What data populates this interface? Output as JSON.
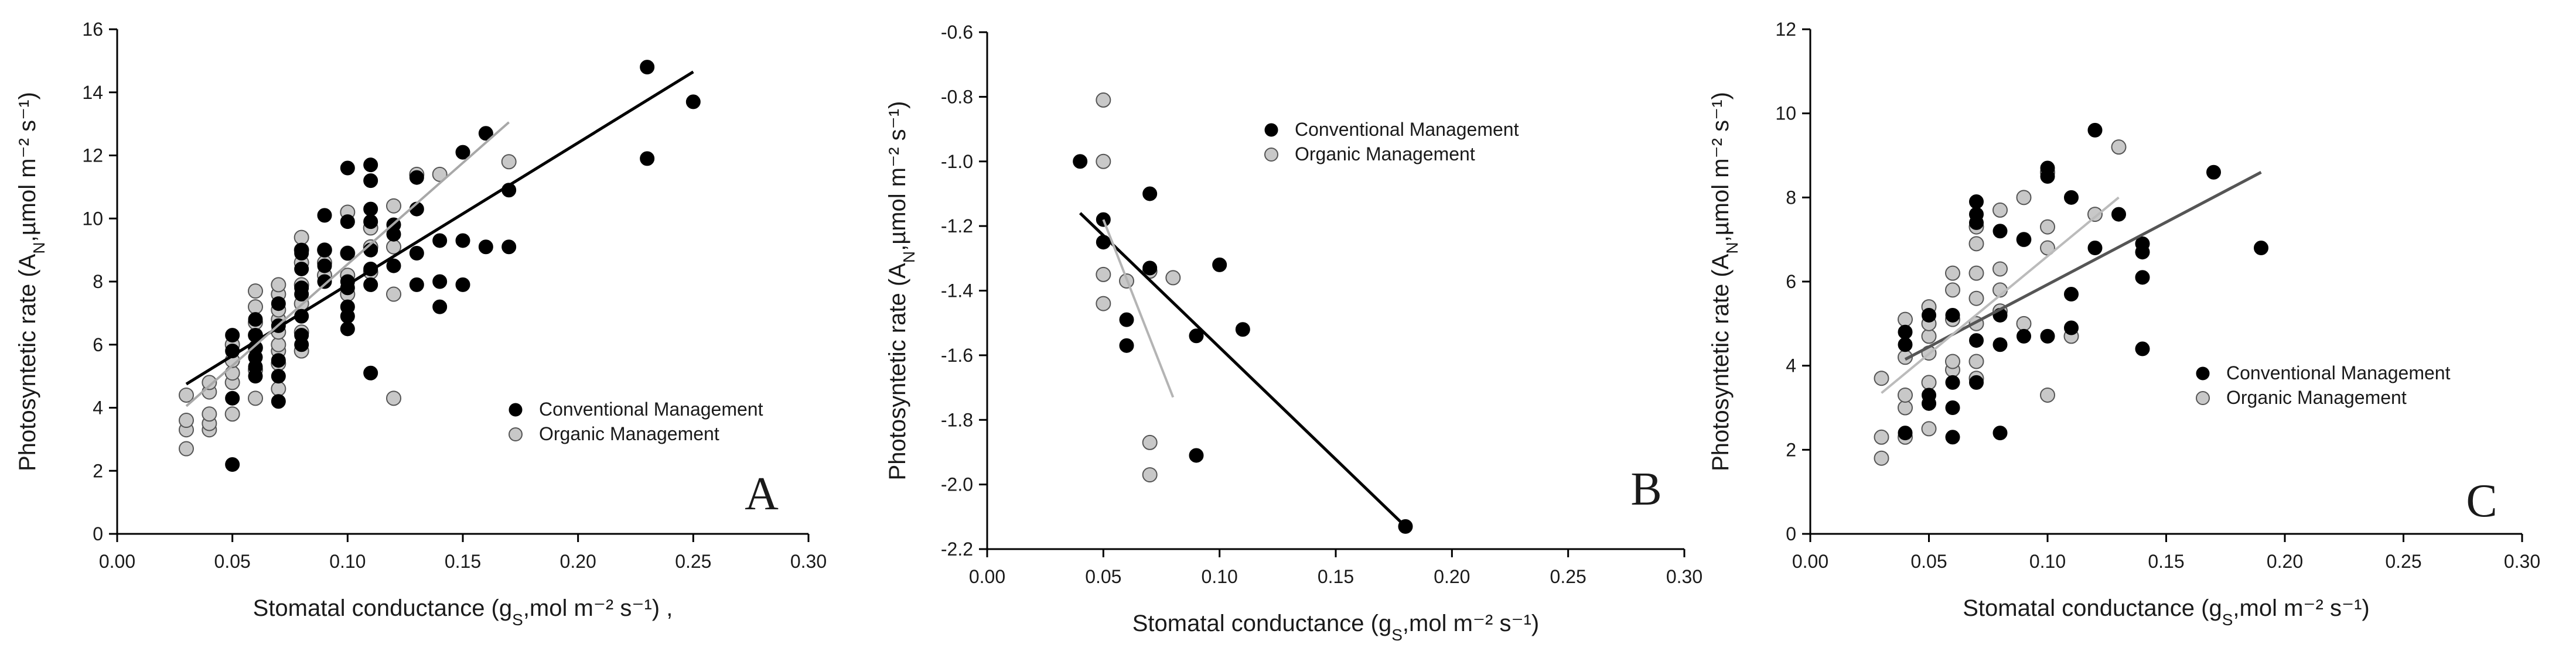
{
  "chart_data": [
    {
      "type": "scatter",
      "panel_label": "A",
      "xlabel": {
        "pre": "Stomatal conductance (g",
        "sub": "S",
        "post": ",mol m⁻² s⁻¹) ,"
      },
      "ylabel": {
        "pre": "Photosyntetic rate (A",
        "sub": "N",
        "post": ",µmol m⁻² s⁻¹)"
      },
      "xlim": [
        0,
        0.3
      ],
      "ylim": [
        0,
        16
      ],
      "xticks": [
        "0.00",
        "0.05",
        "0.10",
        "0.15",
        "0.20",
        "0.25",
        "0.30"
      ],
      "yticks": [
        "0",
        "2",
        "4",
        "6",
        "8",
        "10",
        "12",
        "14",
        "16"
      ],
      "legend_position": "lower-right",
      "series": [
        {
          "name": "Conventional Management",
          "color": "#000000",
          "points": [
            [
              0.05,
              2.2
            ],
            [
              0.05,
              4.3
            ],
            [
              0.05,
              5.8
            ],
            [
              0.05,
              6.3
            ],
            [
              0.06,
              5.0
            ],
            [
              0.06,
              5.3
            ],
            [
              0.06,
              5.6
            ],
            [
              0.06,
              5.9
            ],
            [
              0.06,
              6.3
            ],
            [
              0.06,
              6.8
            ],
            [
              0.07,
              4.2
            ],
            [
              0.07,
              5.0
            ],
            [
              0.07,
              5.5
            ],
            [
              0.07,
              6.6
            ],
            [
              0.07,
              7.3
            ],
            [
              0.08,
              6.0
            ],
            [
              0.08,
              6.3
            ],
            [
              0.08,
              6.9
            ],
            [
              0.08,
              7.6
            ],
            [
              0.08,
              7.8
            ],
            [
              0.08,
              8.4
            ],
            [
              0.08,
              8.9
            ],
            [
              0.08,
              9.0
            ],
            [
              0.09,
              8.0
            ],
            [
              0.09,
              8.5
            ],
            [
              0.09,
              9.0
            ],
            [
              0.09,
              10.1
            ],
            [
              0.1,
              6.5
            ],
            [
              0.1,
              6.9
            ],
            [
              0.1,
              7.2
            ],
            [
              0.1,
              7.8
            ],
            [
              0.1,
              8.0
            ],
            [
              0.1,
              8.9
            ],
            [
              0.1,
              9.9
            ],
            [
              0.1,
              11.6
            ],
            [
              0.11,
              5.1
            ],
            [
              0.11,
              7.9
            ],
            [
              0.11,
              8.4
            ],
            [
              0.11,
              9.0
            ],
            [
              0.11,
              9.9
            ],
            [
              0.11,
              10.3
            ],
            [
              0.11,
              11.2
            ],
            [
              0.11,
              11.7
            ],
            [
              0.12,
              8.5
            ],
            [
              0.12,
              9.5
            ],
            [
              0.12,
              9.8
            ],
            [
              0.13,
              7.9
            ],
            [
              0.13,
              8.9
            ],
            [
              0.13,
              10.3
            ],
            [
              0.13,
              11.3
            ],
            [
              0.14,
              7.2
            ],
            [
              0.14,
              8.0
            ],
            [
              0.14,
              9.3
            ],
            [
              0.15,
              7.9
            ],
            [
              0.15,
              9.3
            ],
            [
              0.15,
              12.1
            ],
            [
              0.16,
              9.1
            ],
            [
              0.16,
              12.7
            ],
            [
              0.17,
              9.1
            ],
            [
              0.17,
              10.9
            ],
            [
              0.23,
              11.9
            ],
            [
              0.23,
              14.8
            ],
            [
              0.25,
              13.7
            ]
          ]
        },
        {
          "name": "Organic Management",
          "color": "#c8c8c8",
          "points": [
            [
              0.03,
              2.7
            ],
            [
              0.03,
              3.3
            ],
            [
              0.03,
              3.6
            ],
            [
              0.03,
              4.4
            ],
            [
              0.04,
              3.3
            ],
            [
              0.04,
              3.5
            ],
            [
              0.04,
              3.8
            ],
            [
              0.04,
              4.5
            ],
            [
              0.04,
              4.8
            ],
            [
              0.05,
              3.8
            ],
            [
              0.05,
              4.8
            ],
            [
              0.05,
              5.1
            ],
            [
              0.05,
              5.5
            ],
            [
              0.05,
              6.0
            ],
            [
              0.06,
              4.3
            ],
            [
              0.06,
              5.2
            ],
            [
              0.06,
              5.9
            ],
            [
              0.06,
              6.3
            ],
            [
              0.06,
              6.7
            ],
            [
              0.06,
              7.2
            ],
            [
              0.06,
              7.7
            ],
            [
              0.07,
              4.6
            ],
            [
              0.07,
              5.4
            ],
            [
              0.07,
              5.8
            ],
            [
              0.07,
              6.0
            ],
            [
              0.07,
              6.4
            ],
            [
              0.07,
              6.8
            ],
            [
              0.07,
              7.1
            ],
            [
              0.07,
              7.6
            ],
            [
              0.07,
              7.9
            ],
            [
              0.08,
              5.8
            ],
            [
              0.08,
              6.4
            ],
            [
              0.08,
              7.3
            ],
            [
              0.08,
              7.9
            ],
            [
              0.08,
              8.6
            ],
            [
              0.08,
              9.0
            ],
            [
              0.08,
              9.4
            ],
            [
              0.09,
              8.2
            ],
            [
              0.09,
              8.6
            ],
            [
              0.09,
              9.0
            ],
            [
              0.1,
              7.6
            ],
            [
              0.1,
              8.2
            ],
            [
              0.1,
              8.9
            ],
            [
              0.1,
              10.2
            ],
            [
              0.11,
              8.3
            ],
            [
              0.11,
              9.1
            ],
            [
              0.11,
              9.7
            ],
            [
              0.12,
              4.3
            ],
            [
              0.12,
              7.6
            ],
            [
              0.12,
              9.1
            ],
            [
              0.12,
              10.4
            ],
            [
              0.13,
              11.4
            ],
            [
              0.14,
              11.4
            ],
            [
              0.17,
              11.8
            ]
          ]
        }
      ],
      "trendlines": [
        {
          "series": "Conventional Management",
          "color": "#000000",
          "from": [
            0.03,
            4.75
          ],
          "to": [
            0.25,
            14.65
          ]
        },
        {
          "series": "Organic Management",
          "color": "#a8a8a8",
          "from": [
            0.03,
            4.05
          ],
          "to": [
            0.17,
            13.05
          ]
        }
      ]
    },
    {
      "type": "scatter",
      "panel_label": "B",
      "xlabel": {
        "pre": "Stomatal conductance (g",
        "sub": "S",
        "post": ",mol m⁻² s⁻¹)"
      },
      "ylabel": {
        "pre": "Photosyntetic rate (A",
        "sub": "N",
        "post": ",µmol m⁻² s⁻¹)"
      },
      "xlim": [
        0,
        0.3
      ],
      "ylim": [
        -2.2,
        -0.6
      ],
      "xticks": [
        "0.00",
        "0.05",
        "0.10",
        "0.15",
        "0.20",
        "0.25",
        "0.30"
      ],
      "yticks": [
        "-2.2",
        "-2.0",
        "-1.8",
        "-1.6",
        "-1.4",
        "-1.2",
        "-1.0",
        "-0.8",
        "-0.6"
      ],
      "legend_position": "top-right",
      "series": [
        {
          "name": "Conventional Management",
          "color": "#000000",
          "points": [
            [
              0.04,
              -1.0
            ],
            [
              0.05,
              -1.18
            ],
            [
              0.05,
              -1.25
            ],
            [
              0.06,
              -1.49
            ],
            [
              0.06,
              -1.57
            ],
            [
              0.07,
              -1.1
            ],
            [
              0.07,
              -1.33
            ],
            [
              0.09,
              -1.54
            ],
            [
              0.09,
              -1.91
            ],
            [
              0.1,
              -1.32
            ],
            [
              0.11,
              -1.52
            ],
            [
              0.18,
              -2.13
            ]
          ]
        },
        {
          "name": "Organic Management",
          "color": "#c8c8c8",
          "points": [
            [
              0.05,
              -0.81
            ],
            [
              0.05,
              -1.0
            ],
            [
              0.05,
              -1.35
            ],
            [
              0.05,
              -1.44
            ],
            [
              0.06,
              -1.37
            ],
            [
              0.07,
              -1.34
            ],
            [
              0.07,
              -1.87
            ],
            [
              0.07,
              -1.97
            ],
            [
              0.08,
              -1.36
            ]
          ]
        }
      ],
      "trendlines": [
        {
          "series": "Conventional Management",
          "color": "#000000",
          "from": [
            0.04,
            -1.16
          ],
          "to": [
            0.18,
            -2.13
          ]
        },
        {
          "series": "Organic Management",
          "color": "#b4b4b4",
          "from": [
            0.05,
            -1.18
          ],
          "to": [
            0.08,
            -1.73
          ]
        }
      ]
    },
    {
      "type": "scatter",
      "panel_label": "C",
      "xlabel": {
        "pre": "Stomatal conductance (g",
        "sub": "S",
        "post": ",mol m⁻² s⁻¹)"
      },
      "ylabel": {
        "pre": "Photosyntetic rate (A",
        "sub": "N",
        "post": ",µmol m⁻² s⁻¹)"
      },
      "xlim": [
        0,
        0.3
      ],
      "ylim": [
        0,
        12
      ],
      "xticks": [
        "0.00",
        "0.05",
        "0.10",
        "0.15",
        "0.20",
        "0.25",
        "0.30"
      ],
      "yticks": [
        "0",
        "2",
        "4",
        "6",
        "8",
        "10",
        "12"
      ],
      "legend_position": "lower-right",
      "series": [
        {
          "name": "Conventional Management",
          "color": "#000000",
          "points": [
            [
              0.04,
              2.4
            ],
            [
              0.04,
              4.5
            ],
            [
              0.04,
              4.8
            ],
            [
              0.05,
              3.1
            ],
            [
              0.05,
              3.3
            ],
            [
              0.05,
              5.2
            ],
            [
              0.06,
              2.3
            ],
            [
              0.06,
              3.0
            ],
            [
              0.06,
              3.6
            ],
            [
              0.06,
              5.2
            ],
            [
              0.07,
              3.6
            ],
            [
              0.07,
              4.6
            ],
            [
              0.07,
              7.4
            ],
            [
              0.07,
              7.6
            ],
            [
              0.07,
              7.9
            ],
            [
              0.08,
              2.4
            ],
            [
              0.08,
              4.5
            ],
            [
              0.08,
              5.2
            ],
            [
              0.08,
              7.2
            ],
            [
              0.09,
              4.7
            ],
            [
              0.09,
              7.0
            ],
            [
              0.1,
              4.7
            ],
            [
              0.1,
              8.5
            ],
            [
              0.1,
              8.7
            ],
            [
              0.11,
              4.9
            ],
            [
              0.11,
              5.7
            ],
            [
              0.11,
              8.0
            ],
            [
              0.12,
              6.8
            ],
            [
              0.12,
              9.6
            ],
            [
              0.13,
              7.6
            ],
            [
              0.14,
              4.4
            ],
            [
              0.14,
              6.1
            ],
            [
              0.14,
              6.7
            ],
            [
              0.14,
              6.9
            ],
            [
              0.17,
              8.6
            ],
            [
              0.19,
              6.8
            ]
          ]
        },
        {
          "name": "Organic Management",
          "color": "#c8c8c8",
          "points": [
            [
              0.03,
              1.8
            ],
            [
              0.03,
              2.3
            ],
            [
              0.03,
              3.7
            ],
            [
              0.04,
              2.3
            ],
            [
              0.04,
              3.0
            ],
            [
              0.04,
              3.3
            ],
            [
              0.04,
              4.2
            ],
            [
              0.04,
              5.1
            ],
            [
              0.05,
              2.5
            ],
            [
              0.05,
              3.6
            ],
            [
              0.05,
              4.3
            ],
            [
              0.05,
              4.7
            ],
            [
              0.05,
              5.0
            ],
            [
              0.05,
              5.4
            ],
            [
              0.06,
              3.9
            ],
            [
              0.06,
              4.1
            ],
            [
              0.06,
              5.1
            ],
            [
              0.06,
              5.8
            ],
            [
              0.06,
              6.2
            ],
            [
              0.07,
              3.7
            ],
            [
              0.07,
              4.1
            ],
            [
              0.07,
              5.0
            ],
            [
              0.07,
              5.6
            ],
            [
              0.07,
              6.2
            ],
            [
              0.07,
              6.9
            ],
            [
              0.07,
              7.3
            ],
            [
              0.08,
              5.3
            ],
            [
              0.08,
              5.8
            ],
            [
              0.08,
              6.3
            ],
            [
              0.08,
              7.7
            ],
            [
              0.09,
              5.0
            ],
            [
              0.09,
              7.0
            ],
            [
              0.09,
              8.0
            ],
            [
              0.1,
              3.3
            ],
            [
              0.1,
              6.8
            ],
            [
              0.1,
              7.3
            ],
            [
              0.1,
              8.6
            ],
            [
              0.11,
              4.7
            ],
            [
              0.12,
              7.6
            ],
            [
              0.13,
              9.2
            ]
          ]
        }
      ],
      "trendlines": [
        {
          "series": "Conventional Management",
          "color": "#555555",
          "from": [
            0.04,
            4.15
          ],
          "to": [
            0.19,
            8.6
          ]
        },
        {
          "series": "Organic Management",
          "color": "#bbbbbb",
          "from": [
            0.03,
            3.35
          ],
          "to": [
            0.13,
            8.0
          ]
        }
      ]
    }
  ]
}
